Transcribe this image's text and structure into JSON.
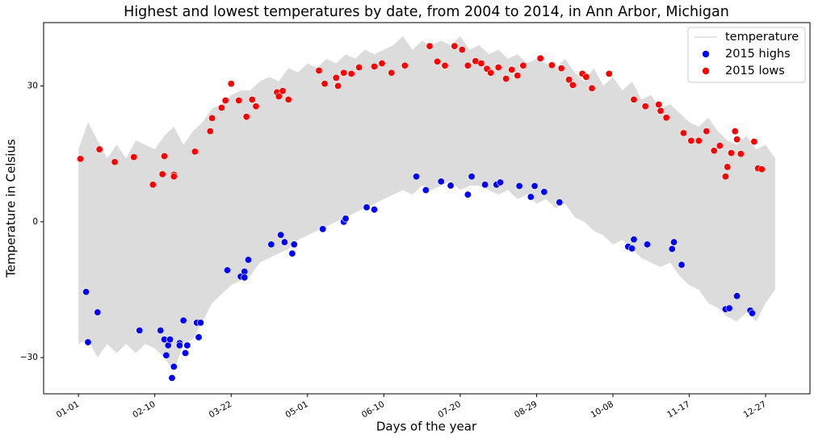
{
  "chart_data": {
    "type": "scatter",
    "title": "Highest and lowest temperatures by date, from 2004 to 2014, in Ann Arbor, Michigan",
    "x_label": "Days of the year",
    "y_label": "Temperature in Celsius",
    "xlim": [
      -18.25,
      383.25
    ],
    "ylim": [
      -38,
      44
    ],
    "xticks": [
      {
        "value": 0,
        "label": "01-01"
      },
      {
        "value": 40,
        "label": "02-10"
      },
      {
        "value": 80,
        "label": "03-22"
      },
      {
        "value": 120,
        "label": "05-01"
      },
      {
        "value": 160,
        "label": "06-10"
      },
      {
        "value": 200,
        "label": "07-20"
      },
      {
        "value": 240,
        "label": "08-29"
      },
      {
        "value": 280,
        "label": "10-08"
      },
      {
        "value": 320,
        "label": "11-17"
      },
      {
        "value": 360,
        "label": "12-27"
      }
    ],
    "yticks": [
      {
        "value": -30,
        "label": "−30"
      },
      0,
      30
    ],
    "legend": "upper right",
    "band": {
      "name": "temperature",
      "color": "#dcdcdc",
      "x": [
        0,
        5,
        10,
        15,
        20,
        25,
        30,
        35,
        40,
        45,
        50,
        55,
        60,
        65,
        70,
        75,
        80,
        85,
        90,
        95,
        100,
        105,
        110,
        115,
        120,
        125,
        130,
        135,
        140,
        145,
        150,
        155,
        160,
        165,
        170,
        175,
        180,
        185,
        190,
        195,
        200,
        205,
        210,
        215,
        220,
        225,
        230,
        235,
        240,
        245,
        250,
        255,
        260,
        265,
        270,
        275,
        280,
        285,
        290,
        295,
        300,
        305,
        310,
        315,
        320,
        325,
        330,
        335,
        340,
        345,
        350,
        355,
        360,
        365
      ],
      "upper": [
        16,
        22,
        18,
        14,
        17,
        14,
        18,
        17,
        16,
        19,
        21,
        17,
        20,
        22,
        25,
        26,
        28,
        29,
        29,
        31,
        32,
        31,
        34,
        33,
        35,
        34,
        36,
        35,
        37,
        36,
        38,
        37,
        38,
        39,
        41,
        38,
        40,
        39,
        40,
        39,
        41,
        38,
        39,
        37,
        38,
        36,
        37,
        35,
        36,
        35,
        34,
        36,
        33,
        31,
        34,
        30,
        32,
        29,
        31,
        27,
        28,
        25,
        26,
        24,
        22,
        21,
        23,
        20,
        18,
        17,
        19,
        16,
        17,
        14
      ],
      "lower": [
        -27,
        -26,
        -30,
        -27,
        -29,
        -27,
        -29,
        -27,
        -28,
        -30,
        -33,
        -27,
        -26,
        -22,
        -18,
        -16,
        -14,
        -13,
        -12,
        -9,
        -8,
        -7,
        -6,
        -4,
        -3,
        -2,
        -1,
        0,
        1,
        2,
        3,
        4,
        5,
        6,
        7,
        6,
        8,
        7,
        8,
        9,
        7,
        8,
        8,
        7,
        6,
        7,
        5,
        6,
        4,
        5,
        3,
        4,
        1,
        0,
        -2,
        -3,
        -5,
        -4,
        -6,
        -8,
        -9,
        -10,
        -9,
        -12,
        -14,
        -15,
        -18,
        -19,
        -21,
        -22,
        -20,
        -22,
        -18,
        -15
      ]
    },
    "series": [
      {
        "name": "2015 highs",
        "color": "#0000ff",
        "x": [
          4,
          5,
          10,
          32,
          43,
          45,
          46,
          47,
          48,
          50,
          49,
          53,
          53,
          55,
          56,
          57,
          62,
          64,
          63,
          78,
          85,
          87,
          87,
          89,
          101,
          106,
          108,
          112,
          113,
          128,
          139,
          140,
          151,
          155,
          177,
          182,
          190,
          195,
          204,
          206,
          213,
          219,
          221,
          231,
          237,
          239,
          244,
          252,
          288,
          290,
          291,
          298,
          311,
          312,
          316,
          339,
          341,
          345,
          352,
          353
        ],
        "values": [
          -15.5,
          -26.6,
          -20,
          -24,
          -24,
          -26,
          -29.5,
          -27.3,
          -26,
          -32,
          -34.5,
          -26.8,
          -27.3,
          -21.8,
          -29,
          -27.3,
          -22.3,
          -22.3,
          -25.5,
          -10.7,
          -12.1,
          -11,
          -12.3,
          -8.4,
          -5,
          -2.9,
          -4.5,
          -7,
          -5,
          -1.6,
          0,
          0.7,
          3.2,
          2.7,
          10,
          7,
          8.9,
          8,
          6,
          10,
          8.2,
          8.2,
          8.7,
          7.9,
          5.5,
          7.9,
          6.6,
          4.3,
          -5.5,
          -5.9,
          -3.9,
          -5,
          -6,
          -4.5,
          -9.5,
          -19.3,
          -19.1,
          -16.4,
          -19.6,
          -20.2
        ]
      },
      {
        "name": "2015 lows",
        "color": "#ff0000",
        "x": [
          1,
          11,
          19,
          29,
          39,
          44,
          45,
          50,
          50,
          61,
          69,
          70,
          75,
          77,
          80,
          84,
          88,
          91,
          93,
          104,
          105,
          107,
          110,
          126,
          129,
          135,
          136,
          139,
          143,
          147,
          155,
          159,
          164,
          171,
          184,
          188,
          192,
          197,
          201,
          204,
          208,
          211,
          214,
          216,
          220,
          224,
          227,
          230,
          233,
          242,
          248,
          253,
          257,
          259,
          264,
          266,
          269,
          278,
          291,
          297,
          304,
          305,
          308,
          317,
          321,
          325,
          329,
          333,
          336,
          339,
          340,
          342,
          344,
          345,
          347,
          354,
          356,
          358
        ],
        "values": [
          13.9,
          16,
          13.2,
          14.3,
          8.2,
          10.5,
          14.5,
          10.4,
          10,
          15.5,
          20,
          22.9,
          25.2,
          26.8,
          30.5,
          26.8,
          23.2,
          27,
          25.5,
          28.6,
          27.7,
          28.9,
          27,
          33.4,
          30.5,
          31.8,
          30,
          32.9,
          32.7,
          34.1,
          34.3,
          35,
          32.9,
          34.5,
          38.8,
          35.4,
          34.5,
          38.8,
          38,
          34.5,
          35.5,
          35,
          33.8,
          32.9,
          34.1,
          31.6,
          33.6,
          32.3,
          34.5,
          36.1,
          34.6,
          33.9,
          31.4,
          30.2,
          32.7,
          32,
          29.5,
          32.7,
          27,
          25.5,
          25.9,
          24.5,
          23,
          19.6,
          17.9,
          17.9,
          20,
          15.7,
          16.8,
          10,
          12.1,
          15.2,
          20,
          18.2,
          15,
          17.7,
          11.8,
          11.6
        ]
      }
    ]
  }
}
